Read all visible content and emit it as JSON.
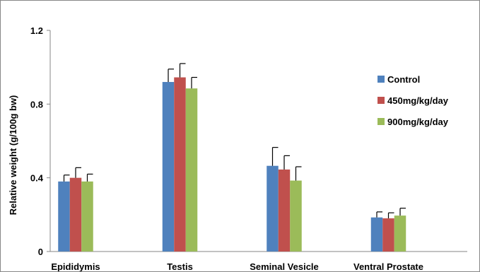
{
  "chart_data": {
    "type": "bar",
    "title": "",
    "xlabel": "",
    "ylabel": "Relative weight (g/100g bw)",
    "ylim": [
      0,
      1.2
    ],
    "yticks": [
      "0",
      "0.4",
      "0.8",
      "1.2"
    ],
    "categories": [
      "Epididymis",
      "Testis",
      "Seminal Vesicle",
      "Ventral Prostate"
    ],
    "series": [
      {
        "name": "Control",
        "color": "#4F81BD",
        "values": [
          0.38,
          0.92,
          0.465,
          0.185
        ],
        "errors": [
          0.035,
          0.07,
          0.1,
          0.03
        ]
      },
      {
        "name": "450mg/kg/day",
        "color": "#C0504D",
        "values": [
          0.4,
          0.945,
          0.445,
          0.18
        ],
        "errors": [
          0.055,
          0.075,
          0.075,
          0.03
        ]
      },
      {
        "name": "900mg/kg/day",
        "color": "#9BBB59",
        "values": [
          0.38,
          0.885,
          0.385,
          0.195
        ],
        "errors": [
          0.04,
          0.06,
          0.075,
          0.04
        ]
      }
    ],
    "legend_position": "right",
    "grid": false
  }
}
